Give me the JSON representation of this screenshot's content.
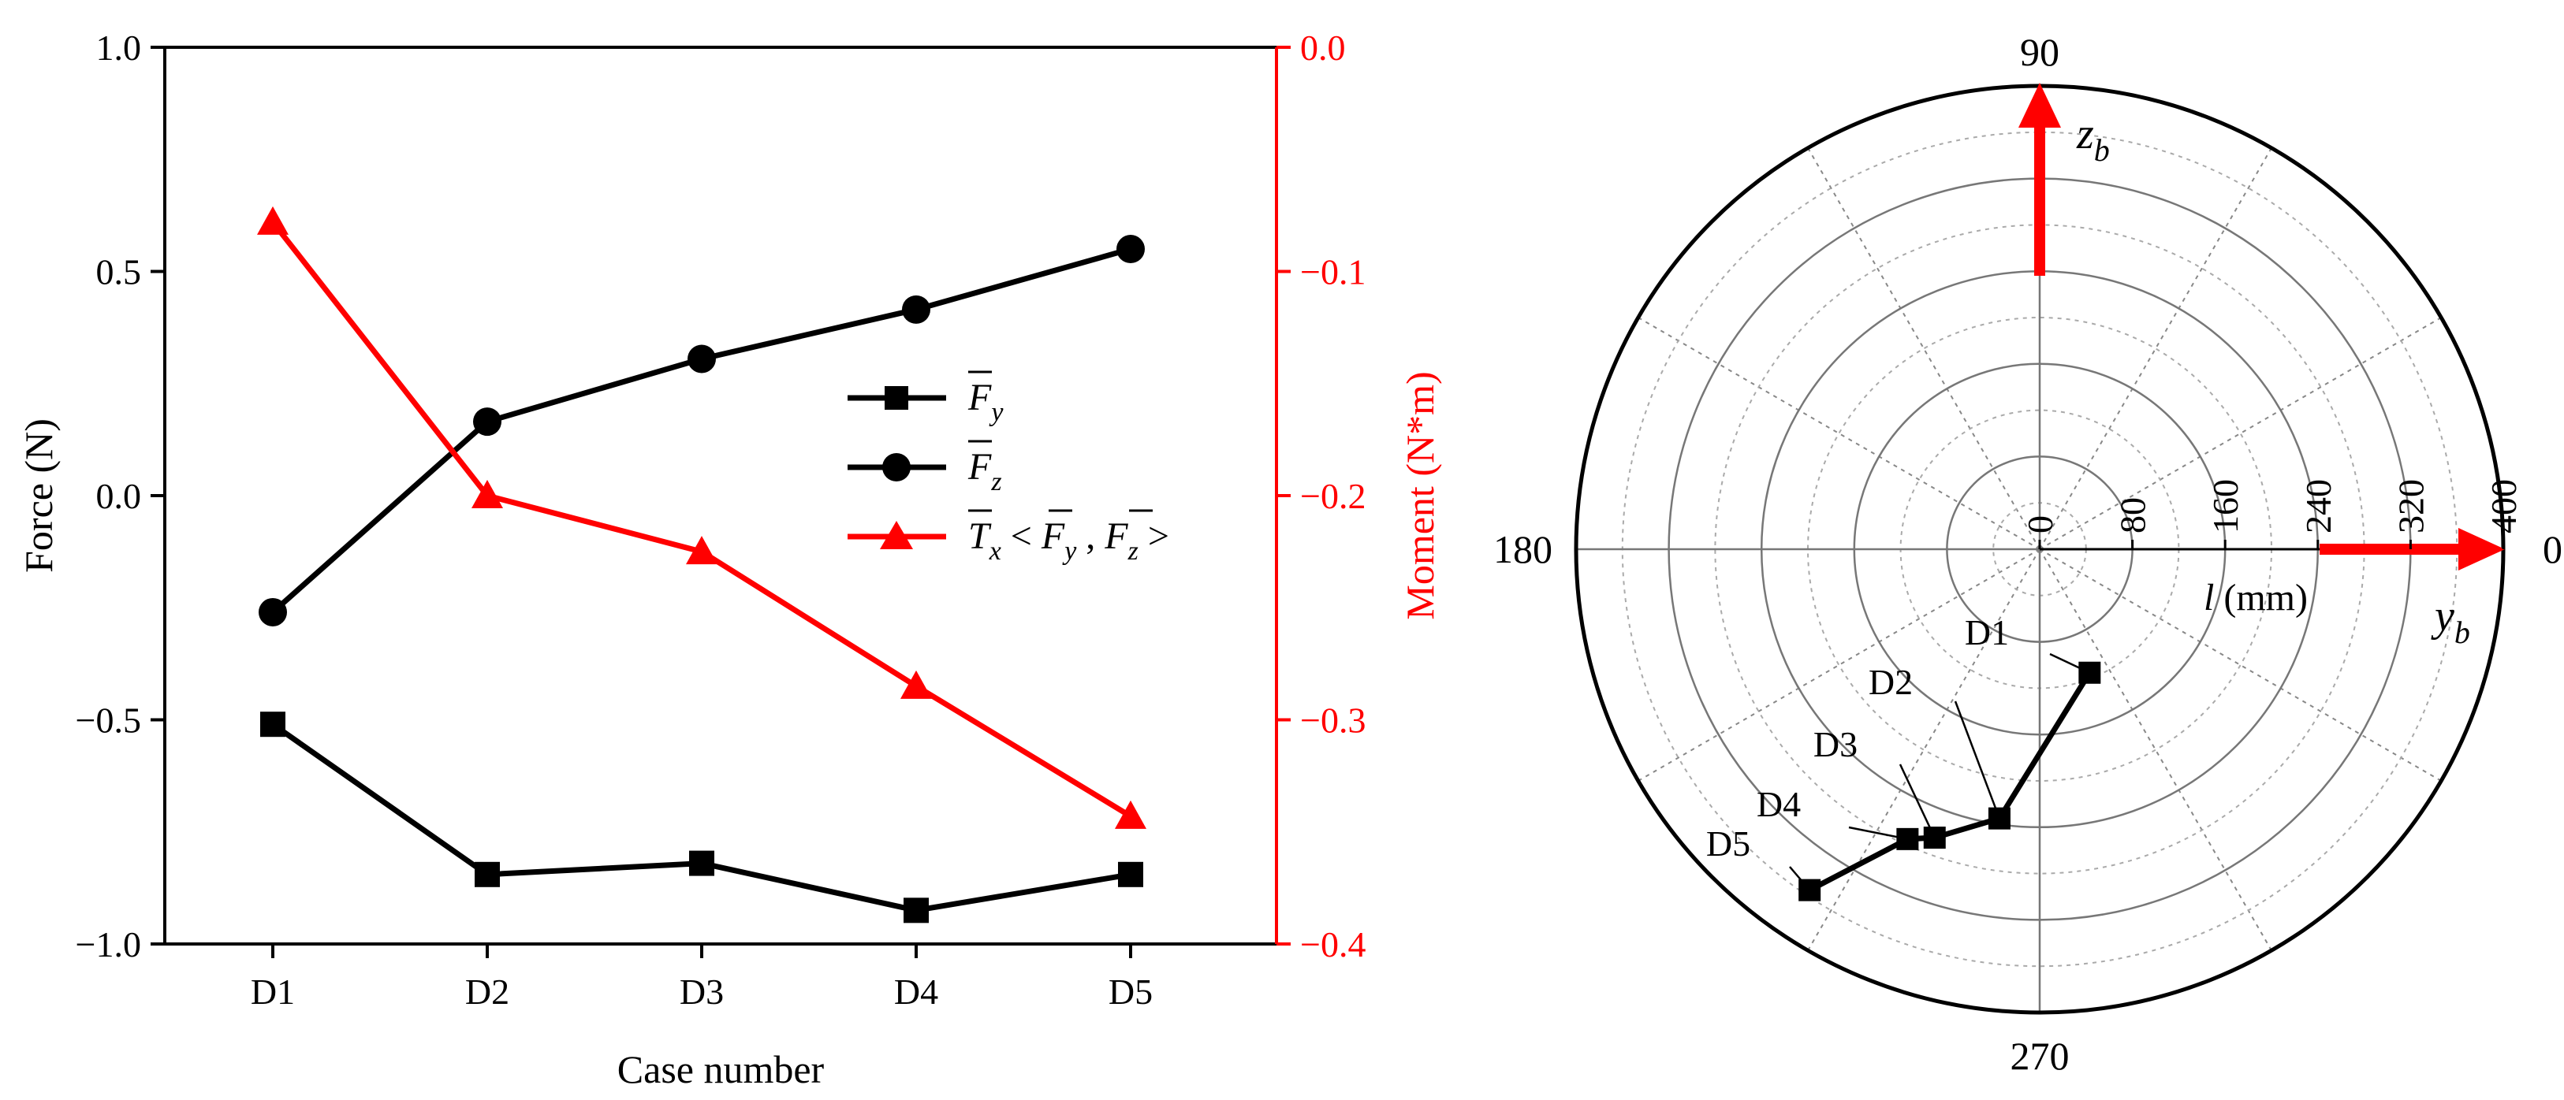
{
  "colors": {
    "force": "#000000",
    "moment": "#ff0000",
    "grid": "#888888"
  },
  "chart_data": [
    {
      "type": "line",
      "xlabel": "Case number",
      "ylabel": "Force (N)",
      "ylabel_right": "Moment (N*m)",
      "categories": [
        "D1",
        "D2",
        "D3",
        "D4",
        "D5"
      ],
      "ylim": [
        -1.0,
        1.0
      ],
      "ylim_right": [
        -0.4,
        0.0
      ],
      "yticks": [
        "1.0",
        "0.5",
        "0.0",
        "−0.5",
        "−1.0"
      ],
      "yticks_right": [
        "0.0",
        "−0.1",
        "−0.2",
        "−0.3",
        "−0.4"
      ],
      "legend_position": "center-right",
      "series": [
        {
          "name": "F̄y",
          "axis": "left",
          "marker": "square",
          "color": "#000000",
          "values": [
            -0.51,
            -0.845,
            -0.82,
            -0.925,
            -0.845
          ]
        },
        {
          "name": "F̄z",
          "axis": "left",
          "marker": "circle",
          "color": "#000000",
          "values": [
            -0.26,
            0.165,
            0.305,
            0.415,
            0.55
          ]
        },
        {
          "name": "T̄x < F̄y , F̄z >",
          "axis": "right",
          "marker": "triangle",
          "color": "#ff0000",
          "values": [
            -0.078,
            -0.2,
            -0.225,
            -0.285,
            -0.343
          ]
        }
      ]
    },
    {
      "type": "scatter",
      "subtype": "polar",
      "radial_label": "l (mm)",
      "radial_range": [
        0,
        400
      ],
      "radial_ticks": [
        "0",
        "80",
        "160",
        "240",
        "320",
        "400"
      ],
      "angle_labels": [
        "0",
        "90",
        "180",
        "270"
      ],
      "angle_unit": "degrees",
      "axis_labels": {
        "y": "yb",
        "z": "zb"
      },
      "points": [
        {
          "label": "D1",
          "r": 115,
          "theta": 292
        },
        {
          "label": "D2",
          "r": 235,
          "theta": 261.5
        },
        {
          "label": "D3",
          "r": 265,
          "theta": 250
        },
        {
          "label": "D4",
          "r": 275,
          "theta": 245.5
        },
        {
          "label": "D5",
          "r": 355,
          "theta": 236
        }
      ]
    }
  ]
}
